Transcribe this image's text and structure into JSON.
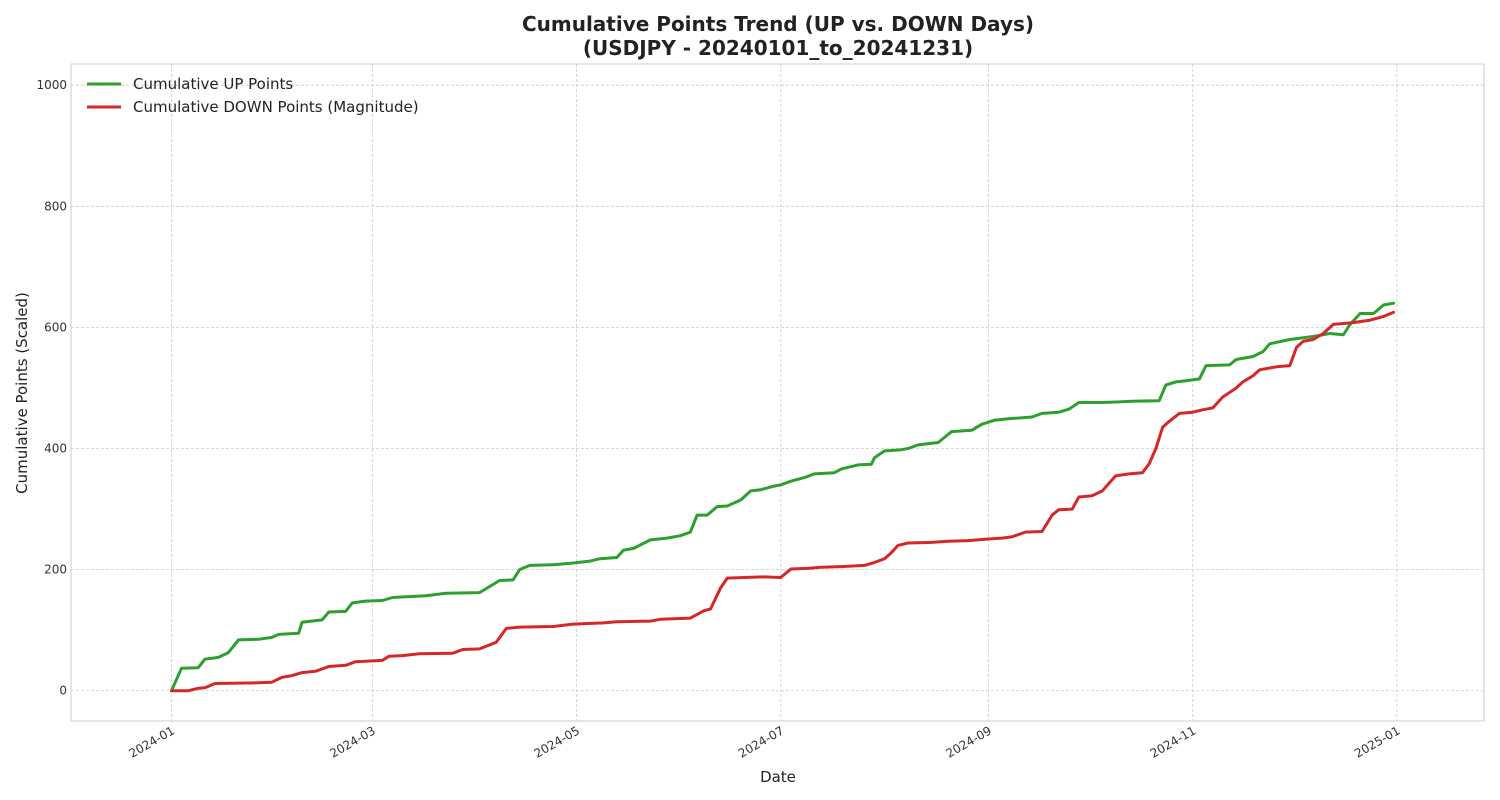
{
  "chart_data": {
    "type": "line",
    "title_line1": "Cumulative Points Trend (UP vs. DOWN Days)",
    "title_line2": "(USDJPY - 20240101_to_20241231)",
    "xlabel": "Date",
    "ylabel": "Cumulative Points (Scaled)",
    "xlim": [
      "2023-12-02",
      "2025-01-27"
    ],
    "ylim": [
      -50,
      1035
    ],
    "x_ticks": [
      "2024-01",
      "2024-03",
      "2024-05",
      "2024-07",
      "2024-09",
      "2024-11",
      "2025-01"
    ],
    "x_tick_dates": [
      "2024-01-01",
      "2024-03-01",
      "2024-05-01",
      "2024-07-01",
      "2024-09-01",
      "2024-11-01",
      "2025-01-01"
    ],
    "y_ticks": [
      0,
      200,
      400,
      600,
      800,
      1000
    ],
    "grid": true,
    "legend_position": "top-left",
    "series": [
      {
        "name": "Cumulative UP Points",
        "color": "#2ca02c",
        "points": [
          [
            "2024-01-01",
            0
          ],
          [
            "2024-01-04",
            37
          ],
          [
            "2024-01-09",
            38
          ],
          [
            "2024-01-11",
            52
          ],
          [
            "2024-01-15",
            55
          ],
          [
            "2024-01-18",
            63
          ],
          [
            "2024-01-21",
            84
          ],
          [
            "2024-01-27",
            85
          ],
          [
            "2024-01-31",
            88
          ],
          [
            "2024-02-02",
            93
          ],
          [
            "2024-02-08",
            95
          ],
          [
            "2024-02-09",
            113
          ],
          [
            "2024-02-15",
            117
          ],
          [
            "2024-02-17",
            130
          ],
          [
            "2024-02-22",
            131
          ],
          [
            "2024-02-24",
            145
          ],
          [
            "2024-02-28",
            148
          ],
          [
            "2024-03-04",
            149
          ],
          [
            "2024-03-07",
            154
          ],
          [
            "2024-03-17",
            157
          ],
          [
            "2024-03-23",
            161
          ],
          [
            "2024-04-02",
            162
          ],
          [
            "2024-04-05",
            172
          ],
          [
            "2024-04-08",
            182
          ],
          [
            "2024-04-12",
            183
          ],
          [
            "2024-04-14",
            200
          ],
          [
            "2024-04-17",
            207
          ],
          [
            "2024-04-24",
            208
          ],
          [
            "2024-04-30",
            211
          ],
          [
            "2024-05-05",
            214
          ],
          [
            "2024-05-08",
            218
          ],
          [
            "2024-05-13",
            220
          ],
          [
            "2024-05-15",
            232
          ],
          [
            "2024-05-18",
            235
          ],
          [
            "2024-05-23",
            249
          ],
          [
            "2024-05-28",
            252
          ],
          [
            "2024-06-01",
            256
          ],
          [
            "2024-06-04",
            262
          ],
          [
            "2024-06-06",
            290
          ],
          [
            "2024-06-09",
            290
          ],
          [
            "2024-06-12",
            304
          ],
          [
            "2024-06-15",
            305
          ],
          [
            "2024-06-19",
            315
          ],
          [
            "2024-06-22",
            330
          ],
          [
            "2024-06-25",
            332
          ],
          [
            "2024-06-29",
            338
          ],
          [
            "2024-07-01",
            340
          ],
          [
            "2024-07-04",
            346
          ],
          [
            "2024-07-08",
            352
          ],
          [
            "2024-07-11",
            358
          ],
          [
            "2024-07-17",
            360
          ],
          [
            "2024-07-19",
            366
          ],
          [
            "2024-07-24",
            373
          ],
          [
            "2024-07-28",
            374
          ],
          [
            "2024-07-29",
            385
          ],
          [
            "2024-08-01",
            396
          ],
          [
            "2024-08-06",
            398
          ],
          [
            "2024-08-08",
            400
          ],
          [
            "2024-08-11",
            406
          ],
          [
            "2024-08-17",
            410
          ],
          [
            "2024-08-21",
            428
          ],
          [
            "2024-08-27",
            430
          ],
          [
            "2024-08-30",
            440
          ],
          [
            "2024-09-03",
            447
          ],
          [
            "2024-09-07",
            449
          ],
          [
            "2024-09-14",
            452
          ],
          [
            "2024-09-17",
            458
          ],
          [
            "2024-09-22",
            460
          ],
          [
            "2024-09-25",
            465
          ],
          [
            "2024-09-28",
            476
          ],
          [
            "2024-10-05",
            476
          ],
          [
            "2024-10-10",
            477
          ],
          [
            "2024-10-14",
            478
          ],
          [
            "2024-10-22",
            479
          ],
          [
            "2024-10-24",
            505
          ],
          [
            "2024-10-27",
            510
          ],
          [
            "2024-10-30",
            512
          ],
          [
            "2024-11-03",
            515
          ],
          [
            "2024-11-05",
            537
          ],
          [
            "2024-11-12",
            538
          ],
          [
            "2024-11-14",
            547
          ],
          [
            "2024-11-19",
            552
          ],
          [
            "2024-11-22",
            560
          ],
          [
            "2024-11-24",
            573
          ],
          [
            "2024-11-30",
            580
          ],
          [
            "2024-12-07",
            585
          ],
          [
            "2024-12-12",
            590
          ],
          [
            "2024-12-16",
            588
          ],
          [
            "2024-12-18",
            605
          ],
          [
            "2024-12-21",
            623
          ],
          [
            "2024-12-25",
            623
          ],
          [
            "2024-12-28",
            637
          ],
          [
            "2024-12-31",
            640
          ]
        ]
      },
      {
        "name": "Cumulative DOWN Points (Magnitude)",
        "color": "#d62728",
        "points": [
          [
            "2024-01-01",
            0
          ],
          [
            "2024-01-06",
            0
          ],
          [
            "2024-01-09",
            4
          ],
          [
            "2024-01-11",
            5
          ],
          [
            "2024-01-14",
            12
          ],
          [
            "2024-01-26",
            13
          ],
          [
            "2024-01-31",
            14
          ],
          [
            "2024-02-03",
            22
          ],
          [
            "2024-02-06",
            25
          ],
          [
            "2024-02-09",
            30
          ],
          [
            "2024-02-13",
            32
          ],
          [
            "2024-02-17",
            40
          ],
          [
            "2024-02-22",
            42
          ],
          [
            "2024-02-25",
            48
          ],
          [
            "2024-03-04",
            50
          ],
          [
            "2024-03-06",
            57
          ],
          [
            "2024-03-10",
            58
          ],
          [
            "2024-03-15",
            61
          ],
          [
            "2024-03-25",
            62
          ],
          [
            "2024-03-28",
            68
          ],
          [
            "2024-04-02",
            69
          ],
          [
            "2024-04-07",
            80
          ],
          [
            "2024-04-10",
            103
          ],
          [
            "2024-04-14",
            105
          ],
          [
            "2024-04-24",
            106
          ],
          [
            "2024-04-30",
            110
          ],
          [
            "2024-05-09",
            112
          ],
          [
            "2024-05-13",
            114
          ],
          [
            "2024-05-23",
            115
          ],
          [
            "2024-05-26",
            118
          ],
          [
            "2024-06-04",
            120
          ],
          [
            "2024-06-08",
            132
          ],
          [
            "2024-06-10",
            135
          ],
          [
            "2024-06-13",
            170
          ],
          [
            "2024-06-15",
            186
          ],
          [
            "2024-06-20",
            187
          ],
          [
            "2024-06-26",
            188
          ],
          [
            "2024-07-01",
            187
          ],
          [
            "2024-07-04",
            201
          ],
          [
            "2024-07-09",
            202
          ],
          [
            "2024-07-13",
            204
          ],
          [
            "2024-07-19",
            205
          ],
          [
            "2024-07-26",
            207
          ],
          [
            "2024-07-29",
            212
          ],
          [
            "2024-08-01",
            218
          ],
          [
            "2024-08-03",
            228
          ],
          [
            "2024-08-05",
            240
          ],
          [
            "2024-08-08",
            244
          ],
          [
            "2024-08-15",
            245
          ],
          [
            "2024-08-20",
            247
          ],
          [
            "2024-08-26",
            248
          ],
          [
            "2024-08-31",
            250
          ],
          [
            "2024-09-05",
            252
          ],
          [
            "2024-09-08",
            254
          ],
          [
            "2024-09-12",
            262
          ],
          [
            "2024-09-17",
            263
          ],
          [
            "2024-09-20",
            290
          ],
          [
            "2024-09-22",
            299
          ],
          [
            "2024-09-26",
            300
          ],
          [
            "2024-09-28",
            320
          ],
          [
            "2024-10-02",
            322
          ],
          [
            "2024-10-05",
            330
          ],
          [
            "2024-10-09",
            355
          ],
          [
            "2024-10-13",
            358
          ],
          [
            "2024-10-17",
            360
          ],
          [
            "2024-10-19",
            375
          ],
          [
            "2024-10-21",
            400
          ],
          [
            "2024-10-23",
            435
          ],
          [
            "2024-10-25",
            445
          ],
          [
            "2024-10-28",
            458
          ],
          [
            "2024-11-01",
            460
          ],
          [
            "2024-11-04",
            464
          ],
          [
            "2024-11-07",
            467
          ],
          [
            "2024-11-10",
            485
          ],
          [
            "2024-11-14",
            500
          ],
          [
            "2024-11-16",
            510
          ],
          [
            "2024-11-19",
            520
          ],
          [
            "2024-11-21",
            530
          ],
          [
            "2024-11-24",
            533
          ],
          [
            "2024-11-26",
            535
          ],
          [
            "2024-11-30",
            537
          ],
          [
            "2024-12-02",
            567
          ],
          [
            "2024-12-04",
            577
          ],
          [
            "2024-12-07",
            580
          ],
          [
            "2024-12-10",
            590
          ],
          [
            "2024-12-13",
            605
          ],
          [
            "2024-12-19",
            608
          ],
          [
            "2024-12-24",
            612
          ],
          [
            "2024-12-28",
            618
          ],
          [
            "2024-12-31",
            625
          ]
        ]
      }
    ]
  }
}
